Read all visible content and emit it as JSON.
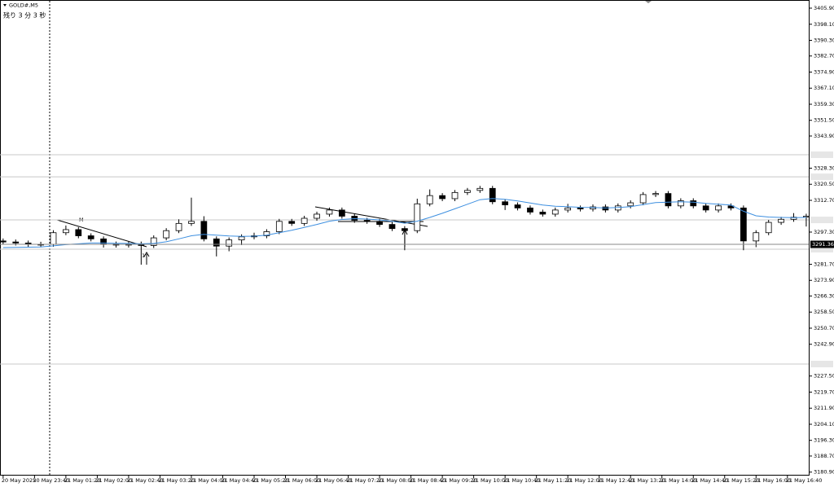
{
  "chart_data": {
    "type": "candlestick",
    "title": "GOLD#,M5",
    "subtitle": "残り 3 分 3 秒",
    "annotations": [
      "M",
      "1"
    ],
    "up_color": "#ffffff",
    "down_color": "#000000",
    "ma_color": "#3d8fe0",
    "open": [
      3293.0,
      3292.5,
      3292.0,
      3291.4,
      3291.4,
      3297.0,
      3298.5,
      3295.5,
      3294.0,
      3291.5,
      3291.0,
      3291.5,
      3290.8,
      3294.5,
      3298.0,
      3301.5,
      3302.5,
      3294.0,
      3290.5,
      3293.5,
      3295.0,
      3295.5,
      3297.5,
      3302.5,
      3301.5,
      3304.0,
      3306.0,
      3308.0,
      3305.0,
      3303.0,
      3302.5,
      3301.0,
      3299.0,
      3298.0,
      3311.0,
      3315.0,
      3313.5,
      3316.5,
      3317.5,
      3318.5,
      3312.0,
      3310.5,
      3309.0,
      3307.0,
      3306.0,
      3308.0,
      3309.0,
      3308.5,
      3309.5,
      3308.0,
      3310.0,
      3311.5,
      3315.5,
      3316.0,
      3310.0,
      3312.5,
      3310.0,
      3308.0,
      3310.0,
      3309.0,
      3293.0,
      3297.0,
      3302.0,
      3303.5,
      3304.5
    ],
    "high": [
      3294.2,
      3293.7,
      3293.2,
      3292.6,
      3298.2,
      3300.5,
      3299.7,
      3296.7,
      3295.2,
      3292.7,
      3292.7,
      3292.7,
      3295.7,
      3299.2,
      3303.5,
      3314.0,
      3305.0,
      3295.2,
      3294.7,
      3296.2,
      3297.0,
      3298.7,
      3303.7,
      3303.7,
      3305.2,
      3307.2,
      3309.2,
      3309.2,
      3306.2,
      3304.2,
      3303.7,
      3302.2,
      3300.2,
      3313.5,
      3318.0,
      3316.2,
      3317.7,
      3318.7,
      3319.7,
      3319.7,
      3313.2,
      3311.7,
      3310.2,
      3308.2,
      3309.2,
      3311.0,
      3310.2,
      3310.7,
      3310.7,
      3311.2,
      3312.7,
      3316.7,
      3317.2,
      3317.2,
      3313.7,
      3313.7,
      3311.2,
      3311.2,
      3311.2,
      3310.2,
      3298.2,
      3303.2,
      3304.7,
      3306.5,
      3306.2
    ],
    "low": [
      3291.3,
      3290.8,
      3290.2,
      3290.2,
      3290.2,
      3295.8,
      3294.3,
      3292.8,
      3289.8,
      3289.8,
      3289.8,
      3281.5,
      3289.6,
      3293.3,
      3296.8,
      3300.3,
      3292.8,
      3285.5,
      3288.0,
      3291.0,
      3293.8,
      3294.3,
      3296.3,
      3300.3,
      3300.3,
      3302.8,
      3304.8,
      3303.8,
      3301.8,
      3301.3,
      3299.8,
      3297.8,
      3288.5,
      3296.8,
      3309.8,
      3312.3,
      3312.3,
      3315.3,
      3316.3,
      3310.8,
      3308.0,
      3307.8,
      3305.8,
      3304.8,
      3304.8,
      3306.8,
      3307.3,
      3307.3,
      3306.8,
      3306.8,
      3308.8,
      3310.3,
      3314.3,
      3308.8,
      3308.8,
      3308.8,
      3306.8,
      3306.8,
      3307.8,
      3288.5,
      3290.0,
      3295.8,
      3300.8,
      3302.3,
      3300.0
    ],
    "close": [
      3292.5,
      3292.0,
      3291.4,
      3291.4,
      3297.0,
      3298.5,
      3295.5,
      3294.0,
      3291.5,
      3291.0,
      3291.5,
      3290.8,
      3294.5,
      3298.0,
      3301.5,
      3302.5,
      3294.0,
      3290.5,
      3293.5,
      3295.0,
      3295.5,
      3297.5,
      3302.5,
      3301.5,
      3304.0,
      3306.0,
      3308.0,
      3305.0,
      3303.0,
      3302.5,
      3301.0,
      3299.0,
      3298.0,
      3311.0,
      3315.0,
      3313.5,
      3316.5,
      3317.5,
      3318.5,
      3312.0,
      3310.5,
      3309.0,
      3307.0,
      3306.0,
      3308.0,
      3309.0,
      3308.5,
      3309.5,
      3308.0,
      3310.0,
      3311.5,
      3315.5,
      3316.0,
      3310.0,
      3312.5,
      3310.0,
      3308.0,
      3310.0,
      3309.0,
      3293.0,
      3297.0,
      3302.0,
      3303.5,
      3304.5,
      3305.0
    ],
    "ma_values": [
      3289.8,
      3289.9,
      3290.0,
      3290.1,
      3290.6,
      3291.2,
      3291.6,
      3292.0,
      3292.0,
      3291.9,
      3291.8,
      3291.6,
      3291.8,
      3292.6,
      3294.0,
      3295.5,
      3296.2,
      3295.8,
      3295.4,
      3295.2,
      3295.3,
      3295.8,
      3297.0,
      3298.2,
      3299.6,
      3301.0,
      3302.6,
      3303.4,
      3303.8,
      3303.6,
      3303.2,
      3302.5,
      3301.6,
      3302.6,
      3304.4,
      3306.4,
      3308.6,
      3310.8,
      3313.0,
      3313.6,
      3313.2,
      3312.4,
      3311.4,
      3310.4,
      3309.8,
      3309.6,
      3309.3,
      3309.2,
      3309.0,
      3309.2,
      3309.6,
      3310.6,
      3311.6,
      3311.8,
      3312.0,
      3311.8,
      3311.2,
      3310.8,
      3310.4,
      3307.4,
      3305.2,
      3304.6,
      3304.4,
      3304.3,
      3304.4
    ],
    "hlines": [
      3334.8,
      3324.1,
      3303.2,
      3289.0,
      3233.3
    ],
    "bid": {
      "value": 3291.36,
      "label": "3291.36"
    },
    "xlim": [
      -0.25,
      64.2
    ],
    "ylim": [
      3179.6,
      3409.85
    ],
    "yticks": [
      {
        "value": 3405.9,
        "label": "3405.90"
      },
      {
        "value": 3398.1,
        "label": "3398.10"
      },
      {
        "value": 3390.3,
        "label": "3390.30"
      },
      {
        "value": 3382.7,
        "label": "3382.70"
      },
      {
        "value": 3374.9,
        "label": "3374.90"
      },
      {
        "value": 3367.1,
        "label": "3367.10"
      },
      {
        "value": 3359.3,
        "label": "3359.30"
      },
      {
        "value": 3351.5,
        "label": "3351.50"
      },
      {
        "value": 3343.9,
        "label": "3343.90"
      },
      {
        "value": 3328.3,
        "label": "3328.30"
      },
      {
        "value": 3320.5,
        "label": "3320.50"
      },
      {
        "value": 3312.7,
        "label": "3312.70"
      },
      {
        "value": 3297.3,
        "label": "3297.30"
      },
      {
        "value": 3281.7,
        "label": "3281.70"
      },
      {
        "value": 3273.9,
        "label": "3273.90"
      },
      {
        "value": 3266.3,
        "label": "3266.30"
      },
      {
        "value": 3258.5,
        "label": "3258.50"
      },
      {
        "value": 3250.7,
        "label": "3250.70"
      },
      {
        "value": 3242.9,
        "label": "3242.90"
      },
      {
        "value": 3227.5,
        "label": "3227.50"
      },
      {
        "value": 3219.7,
        "label": "3219.70"
      },
      {
        "value": 3211.9,
        "label": "3211.90"
      },
      {
        "value": 3204.1,
        "label": "3204.10"
      },
      {
        "value": 3196.3,
        "label": "3196.30"
      },
      {
        "value": 3188.7,
        "label": "3188.70"
      },
      {
        "value": 3180.9,
        "label": "3180.90"
      }
    ],
    "xticks": [
      {
        "value": 0,
        "label": "20 May 2025"
      },
      {
        "value": 2.5,
        "label": "20 May 23:40"
      },
      {
        "value": 5,
        "label": "21 May 01:20"
      },
      {
        "value": 7.5,
        "label": "21 May 02:00"
      },
      {
        "value": 10,
        "label": "21 May 02:40"
      },
      {
        "value": 12.5,
        "label": "21 May 03:20"
      },
      {
        "value": 15,
        "label": "21 May 04:00"
      },
      {
        "value": 17.5,
        "label": "21 May 04:40"
      },
      {
        "value": 20,
        "label": "21 May 05:20"
      },
      {
        "value": 22.5,
        "label": "21 May 06:00"
      },
      {
        "value": 25,
        "label": "21 May 06:40"
      },
      {
        "value": 27.5,
        "label": "21 May 07:20"
      },
      {
        "value": 30,
        "label": "21 May 08:00"
      },
      {
        "value": 32.5,
        "label": "21 May 08:40"
      },
      {
        "value": 35,
        "label": "21 May 09:20"
      },
      {
        "value": 37.5,
        "label": "21 May 10:00"
      },
      {
        "value": 40,
        "label": "21 May 10:40"
      },
      {
        "value": 42.5,
        "label": "21 May 11:20"
      },
      {
        "value": 45,
        "label": "21 May 12:00"
      },
      {
        "value": 47.5,
        "label": "21 May 12:40"
      },
      {
        "value": 50,
        "label": "21 May 13:20"
      },
      {
        "value": 52.5,
        "label": "21 May 14:00"
      },
      {
        "value": 55,
        "label": "21 May 14:40"
      },
      {
        "value": 57.5,
        "label": "21 May 15:20"
      },
      {
        "value": 60,
        "label": "21 May 16:00"
      },
      {
        "value": 62.5,
        "label": "21 May 16:40"
      }
    ]
  }
}
